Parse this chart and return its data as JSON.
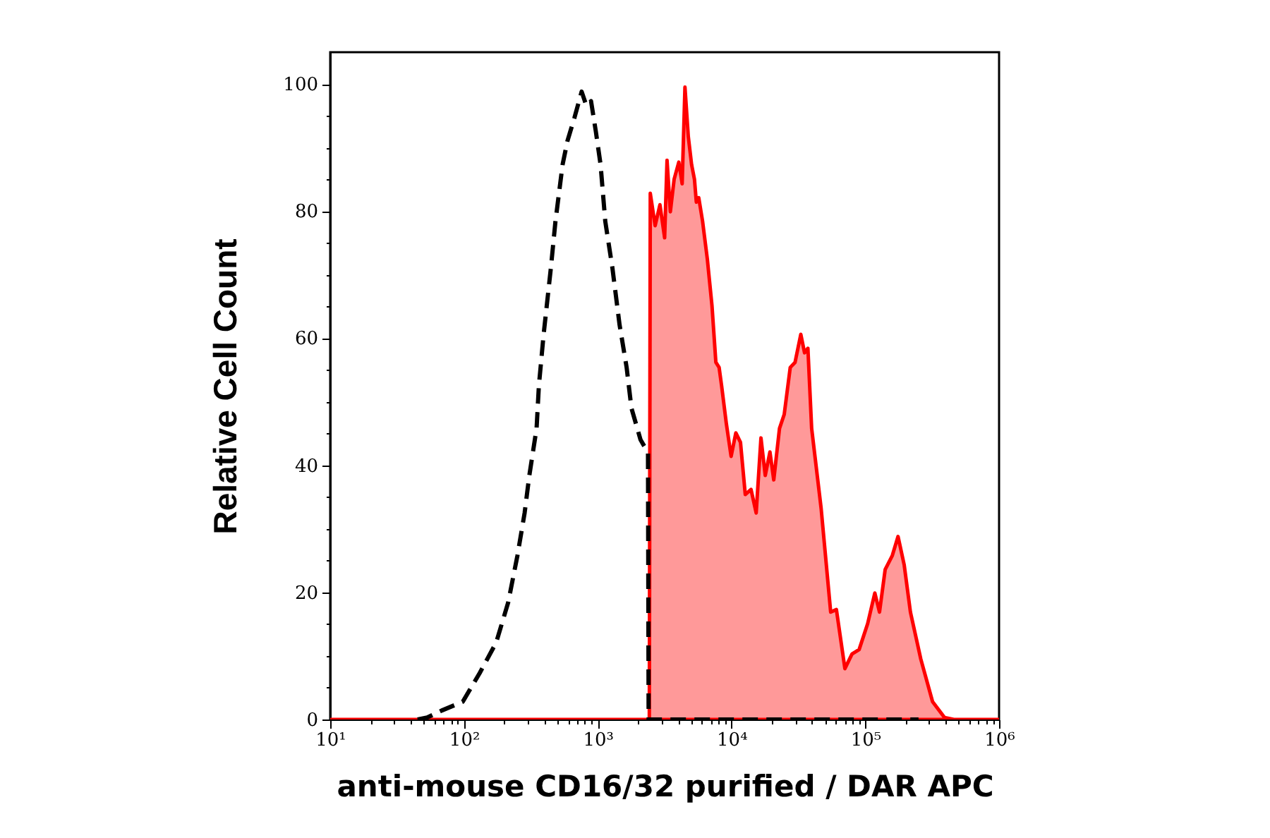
{
  "chart_data": {
    "type": "area",
    "xlabel": "anti-mouse CD16/32 purified / DAR APC",
    "ylabel": "Relative Cell Count",
    "log": "x",
    "xlim": [
      10,
      1000000
    ],
    "ylim": [
      0,
      105
    ],
    "xticks": [
      {
        "value": 10,
        "label": "10¹"
      },
      {
        "value": 20,
        "label": null
      },
      {
        "value": 30,
        "label": null
      },
      {
        "value": 40,
        "label": null
      },
      {
        "value": 50,
        "label": null
      },
      {
        "value": 60,
        "label": null
      },
      {
        "value": 70,
        "label": null
      },
      {
        "value": 80,
        "label": null
      },
      {
        "value": 90,
        "label": null
      },
      {
        "value": 100,
        "label": "10²"
      },
      {
        "value": 200,
        "label": null
      },
      {
        "value": 300,
        "label": null
      },
      {
        "value": 400,
        "label": null
      },
      {
        "value": 500,
        "label": null
      },
      {
        "value": 600,
        "label": null
      },
      {
        "value": 700,
        "label": null
      },
      {
        "value": 800,
        "label": null
      },
      {
        "value": 900,
        "label": null
      },
      {
        "value": 1000,
        "label": "10³"
      },
      {
        "value": 2000,
        "label": null
      },
      {
        "value": 3000,
        "label": null
      },
      {
        "value": 4000,
        "label": null
      },
      {
        "value": 5000,
        "label": null
      },
      {
        "value": 6000,
        "label": null
      },
      {
        "value": 7000,
        "label": null
      },
      {
        "value": 8000,
        "label": null
      },
      {
        "value": 9000,
        "label": null
      },
      {
        "value": 10000,
        "label": "10⁴"
      },
      {
        "value": 20000,
        "label": null
      },
      {
        "value": 30000,
        "label": null
      },
      {
        "value": 40000,
        "label": null
      },
      {
        "value": 50000,
        "label": null
      },
      {
        "value": 60000,
        "label": null
      },
      {
        "value": 70000,
        "label": null
      },
      {
        "value": 80000,
        "label": null
      },
      {
        "value": 90000,
        "label": null
      },
      {
        "value": 100000,
        "label": "10⁵"
      },
      {
        "value": 200000,
        "label": null
      },
      {
        "value": 300000,
        "label": null
      },
      {
        "value": 400000,
        "label": null
      },
      {
        "value": 500000,
        "label": null
      },
      {
        "value": 600000,
        "label": null
      },
      {
        "value": 700000,
        "label": null
      },
      {
        "value": 800000,
        "label": null
      },
      {
        "value": 900000,
        "label": null
      },
      {
        "value": 1000000,
        "label": "10⁶"
      }
    ],
    "yticks": [
      0,
      {
        "value": 5,
        "label": null
      },
      {
        "value": 10,
        "label": null
      },
      {
        "value": 15,
        "label": null
      },
      20,
      {
        "value": 25,
        "label": null
      },
      {
        "value": 30,
        "label": null
      },
      {
        "value": 35,
        "label": null
      },
      40,
      {
        "value": 45,
        "label": null
      },
      {
        "value": 50,
        "label": null
      },
      {
        "value": 55,
        "label": null
      },
      60,
      {
        "value": 65,
        "label": null
      },
      {
        "value": 70,
        "label": null
      },
      {
        "value": 75,
        "label": null
      },
      80,
      {
        "value": 85,
        "label": null
      },
      {
        "value": 90,
        "label": null
      },
      {
        "value": 95,
        "label": null
      },
      100
    ],
    "series": [
      {
        "color": "#ff0000",
        "line_style": "solid",
        "x": [
          10,
          2430,
          2470,
          2685,
          2917,
          3162,
          3296,
          3488,
          3724,
          4036,
          4276,
          4487,
          4753,
          5031,
          5284,
          5458,
          5689,
          6075,
          6590,
          7145,
          7638,
          8075,
          8433,
          9140,
          9930,
          10770,
          11670,
          12670,
          13990,
          15290,
          16600,
          17870,
          19370,
          20690,
          22840,
          24770,
          27480,
          29850,
          32960,
          35160,
          37240,
          39720,
          46770,
          55110,
          60810,
          70410,
          79570,
          89940,
          104200,
          117800,
          127700,
          140800,
          159200,
          175700,
          195400,
          217500,
          260000,
          318300,
          391300,
          460000,
          1000000
        ],
        "values": [
          0,
          0,
          82.8,
          77.7,
          81,
          75.8,
          88,
          79.9,
          85,
          87.7,
          84.3,
          99.5,
          91.7,
          87.3,
          85,
          81.4,
          82.1,
          78.4,
          72.5,
          65.1,
          56.2,
          55.4,
          52.5,
          46.6,
          41.4,
          45.1,
          43.6,
          35.4,
          36.2,
          32.5,
          44.3,
          38.4,
          42.1,
          37.7,
          45.8,
          48,
          55.4,
          56.2,
          60.6,
          57.7,
          58.4,
          45.8,
          33.2,
          16.9,
          17.3,
          8,
          10.3,
          11,
          15.1,
          19.9,
          16.9,
          23.6,
          25.8,
          28.8,
          24.3,
          16.9,
          9.5,
          2.8,
          0.3,
          0,
          0
        ]
      },
      {
        "type": "line",
        "color": "#000000",
        "line_style": "dashed",
        "x": [
          45,
          53,
          68,
          98,
          131,
          174,
          214,
          251,
          284,
          308,
          349,
          363,
          394,
          446,
          483,
          546,
          593,
          670,
          758,
          822,
          891,
          968,
          1050,
          1138,
          1288,
          1456,
          1644,
          1786,
          2090,
          2375,
          2400,
          250000
        ],
        "values": [
          0,
          0.3,
          1.4,
          2.8,
          7.3,
          12.1,
          18.4,
          25.8,
          32.5,
          38.4,
          45.8,
          52.5,
          60.6,
          71,
          78.4,
          87.3,
          91,
          94.7,
          98.8,
          96.6,
          97.3,
          92.5,
          87.3,
          78.4,
          71,
          62.1,
          55.4,
          49,
          44,
          42,
          0,
          0
        ]
      }
    ]
  }
}
